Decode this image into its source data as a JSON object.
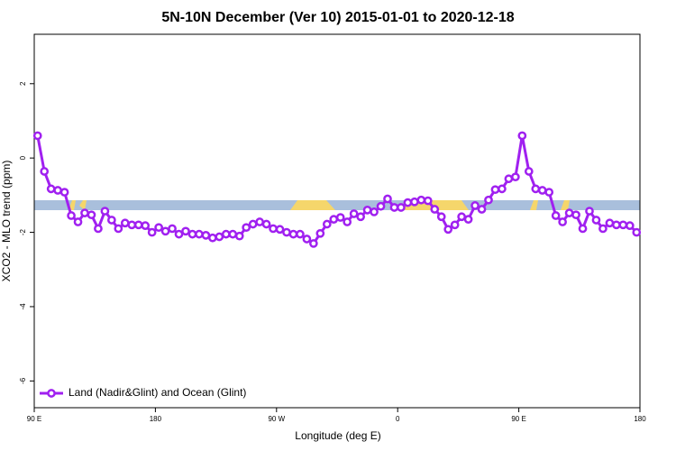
{
  "chart_data": {
    "type": "line",
    "title": "5N-10N December (Ver 10)   2015-01-01 to 2020-12-18",
    "x_label": "Longitude (deg E)",
    "y_label": "XCO2 - MLO trend (ppm)",
    "x": [
      92.5,
      97.5,
      102.5,
      107.5,
      112.5,
      117.5,
      122.5,
      127.5,
      132.5,
      137.5,
      142.5,
      147.5,
      152.5,
      157.5,
      162.5,
      167.5,
      172.5,
      177.5,
      182.5,
      187.5,
      192.5,
      197.5,
      202.5,
      207.5,
      212.5,
      217.5,
      222.5,
      227.5,
      232.5,
      237.5,
      242.5,
      247.5,
      252.5,
      257.5,
      262.5,
      267.5,
      272.5,
      277.5,
      282.5,
      287.5,
      292.5,
      297.5,
      302.5,
      307.5,
      312.5,
      317.5,
      322.5,
      327.5,
      332.5,
      337.5,
      342.5,
      347.5,
      352.5,
      357.5,
      362.5,
      367.5,
      372.5,
      377.5,
      382.5,
      387.5,
      392.5,
      397.5,
      402.5,
      407.5,
      412.5,
      417.5,
      422.5,
      427.5,
      432.5,
      437.5,
      442.5,
      447.5,
      452.5,
      457.5,
      462.5,
      467.5,
      472.5,
      477.5,
      482.5,
      487.5,
      492.5,
      497.5,
      502.5,
      507.5,
      512.5,
      517.5,
      522.5,
      527.5,
      532.5,
      537.5
    ],
    "series": [
      {
        "name": "Land (Nadir&Glint) and Ocean (Glint)",
        "color": "#a020f0",
        "values": [
          0.6,
          -0.36,
          -0.83,
          -0.87,
          -0.92,
          -1.55,
          -1.72,
          -1.48,
          -1.53,
          -1.9,
          -1.43,
          -1.67,
          -1.9,
          -1.75,
          -1.8,
          -1.8,
          -1.82,
          -2.0,
          -1.87,
          -1.97,
          -1.9,
          -2.05,
          -1.97,
          -2.05,
          -2.05,
          -2.08,
          -2.15,
          -2.12,
          -2.05,
          -2.05,
          -2.1,
          -1.87,
          -1.78,
          -1.72,
          -1.78,
          -1.9,
          -1.92,
          -2.0,
          -2.05,
          -2.05,
          -2.18,
          -2.3,
          -2.03,
          -1.78,
          -1.65,
          -1.6,
          -1.72,
          -1.5,
          -1.58,
          -1.4,
          -1.45,
          -1.3,
          -1.1,
          -1.33,
          -1.33,
          -1.2,
          -1.18,
          -1.13,
          -1.15,
          -1.38,
          -1.58,
          -1.92,
          -1.8,
          -1.58,
          -1.65,
          -1.28,
          -1.38,
          -1.13,
          -0.85,
          -0.83,
          -0.56,
          -0.51,
          0.6,
          -0.36,
          -0.83,
          -0.87,
          -0.92,
          -1.55,
          -1.72,
          -1.48,
          -1.53,
          -1.9,
          -1.43,
          -1.67,
          -1.9,
          -1.75,
          -1.8,
          -1.8,
          -1.82,
          -2.0
        ]
      }
    ],
    "xlim": [
      90,
      540
    ],
    "xticks": [
      {
        "value": 90,
        "label": "90 E"
      },
      180,
      {
        "value": 270,
        "label": "90 W"
      },
      {
        "value": 360,
        "label": "0"
      },
      {
        "value": 450,
        "label": "90 E"
      },
      {
        "value": 540,
        "label": "180"
      }
    ],
    "ylim": [
      -6.72,
      3.33
    ],
    "yticks": [
      2,
      0,
      -2,
      -4,
      -6
    ],
    "legend": "bottom-left"
  }
}
